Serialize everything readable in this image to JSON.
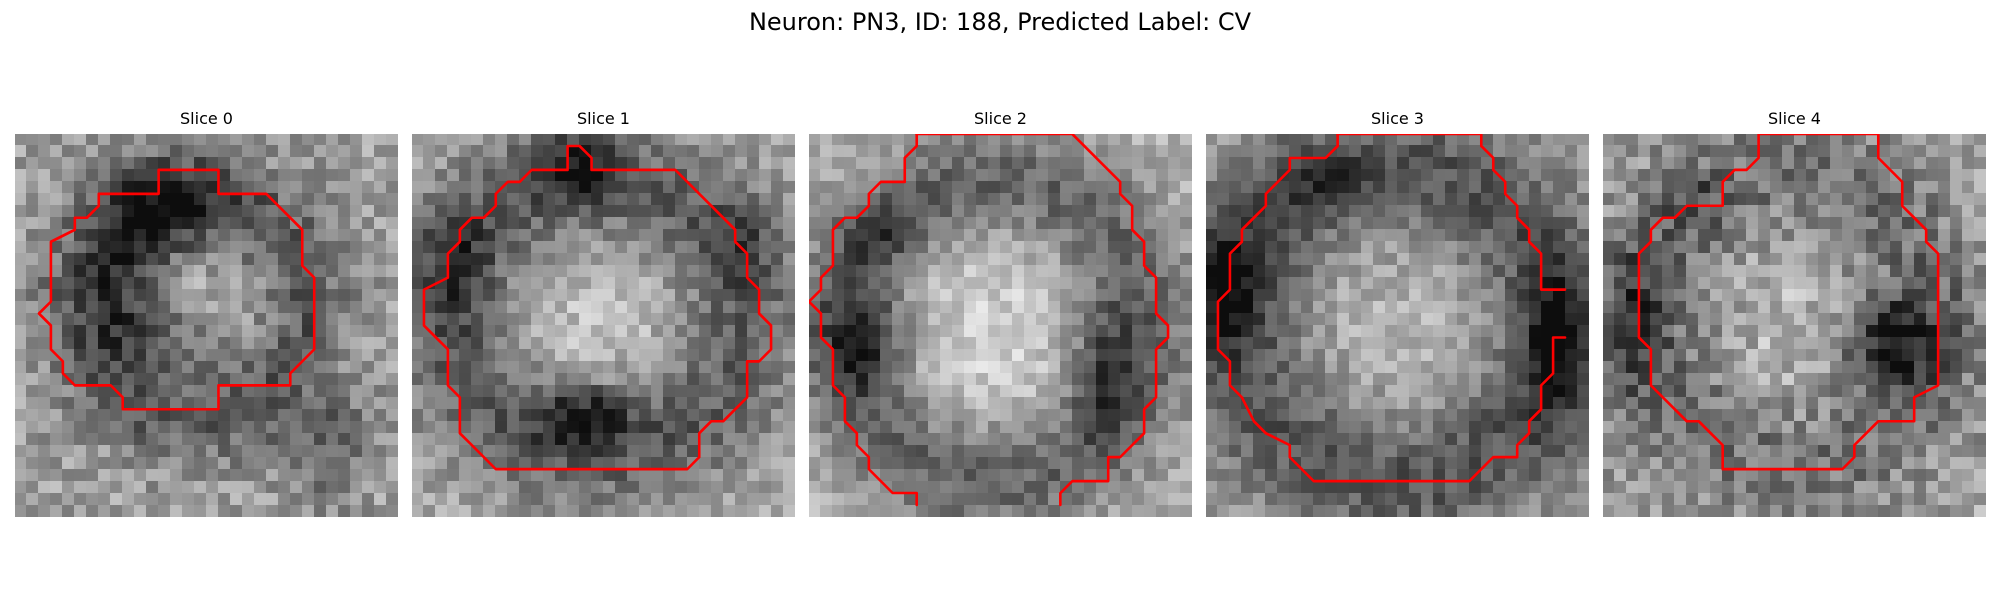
{
  "figure": {
    "title": "Neuron: PN3, ID: 188, Predicted Label: CV"
  },
  "panels": [
    {
      "title": "Slice 0"
    },
    {
      "title": "Slice 1"
    },
    {
      "title": "Slice 2"
    },
    {
      "title": "Slice 3"
    },
    {
      "title": "Slice 4"
    }
  ],
  "colors": {
    "contour": "#ff0000",
    "background": "#ffffff"
  }
}
